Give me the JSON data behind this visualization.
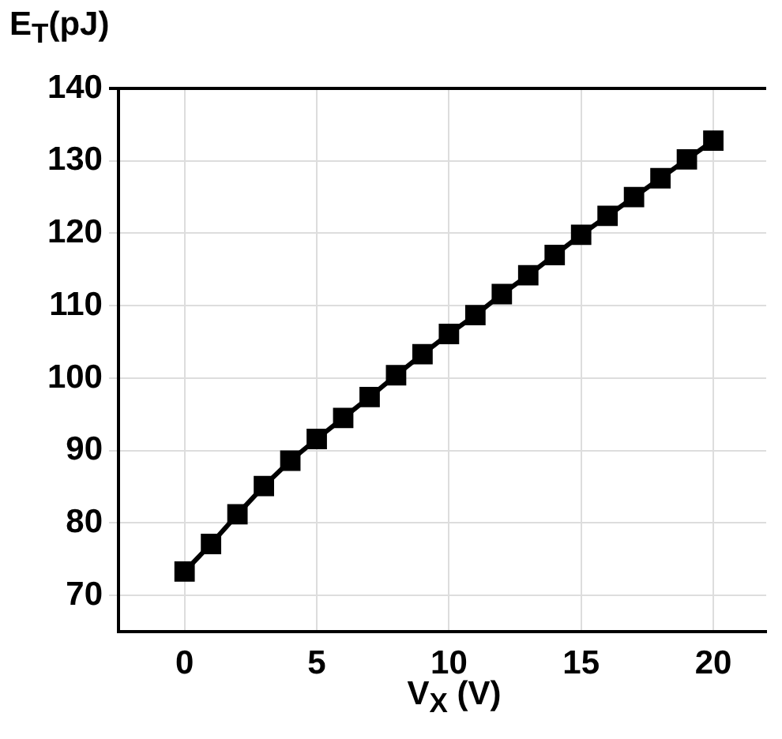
{
  "chart_data": {
    "type": "line",
    "xlabel": "V$_{X}$ (V)",
    "ylabel": "E$_{T}$(pJ)",
    "x": [
      0,
      1,
      2,
      3,
      4,
      5,
      6,
      7,
      8,
      9,
      10,
      11,
      12,
      13,
      14,
      15,
      16,
      17,
      18,
      19,
      20
    ],
    "series": [
      {
        "color": "#000000",
        "values": [
          73.3,
          77.1,
          81.2,
          85.1,
          88.6,
          91.6,
          94.5,
          97.4,
          100.4,
          103.3,
          106.1,
          108.7,
          111.6,
          114.2,
          117.0,
          119.8,
          122.4,
          125.0,
          127.6,
          130.2,
          132.8
        ]
      }
    ],
    "xlim": [
      -2.5,
      22
    ],
    "xticks": [
      0,
      5,
      10,
      15,
      20
    ],
    "ylim": [
      65,
      140
    ],
    "yticks": [
      70,
      80,
      90,
      100,
      110,
      120,
      130,
      140
    ],
    "grid": true,
    "legend": false,
    "marker": "square",
    "line_style": "solid"
  }
}
